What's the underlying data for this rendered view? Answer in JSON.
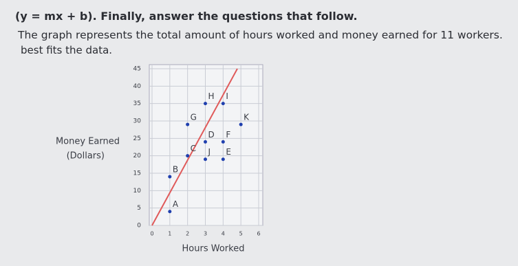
{
  "instruction": "(y = mx + b). Finally, answer the questions that follow.",
  "description": "The graph represents the total amount of hours worked and money earned for 11 workers.",
  "description_end": "best fits the data.",
  "chart_data": {
    "type": "scatter",
    "ylabel": [
      "Money Earned",
      "(Dollars)"
    ],
    "xlabel": "Hours Worked",
    "point_labels": [
      "A",
      "B",
      "C",
      "G",
      "H",
      "I",
      "D",
      "F",
      "J",
      "E",
      "K"
    ],
    "x": [
      1,
      1,
      2,
      2,
      3,
      4,
      3,
      4,
      3,
      4,
      5
    ],
    "series": [
      {
        "color": "#1f3fae",
        "values": [
          4,
          14,
          20,
          29,
          35,
          35,
          24,
          24,
          19,
          19,
          29
        ]
      }
    ],
    "trend_line": {
      "color": "#e05a5a",
      "x": [
        0,
        4.8
      ],
      "y": [
        0,
        45
      ]
    },
    "xlim": [
      0,
      6
    ],
    "ylim": [
      0,
      45
    ],
    "xticks": [
      0,
      1,
      2,
      3,
      4,
      5,
      6
    ],
    "yticks": [
      0,
      5,
      10,
      15,
      20,
      25,
      30,
      35,
      40,
      45
    ],
    "grid": true
  }
}
